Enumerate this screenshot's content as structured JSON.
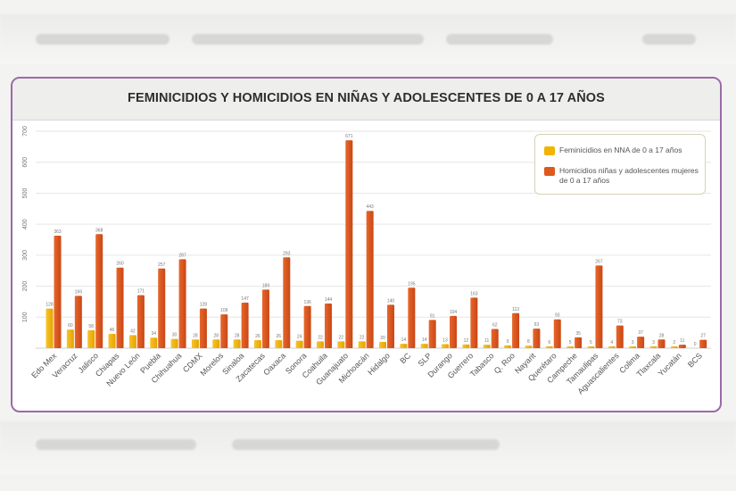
{
  "chart_data": {
    "type": "bar",
    "title": "FEMINICIDIOS Y HOMICIDIOS EN NIÑAS Y ADOLESCENTES DE 0 A 17 AÑOS",
    "ylim": [
      0,
      700
    ],
    "yticks": [
      100,
      200,
      300,
      400,
      500,
      600,
      700
    ],
    "grid": true,
    "legend_position": "top-right",
    "categories": [
      "Edo Mex",
      "Veracruz",
      "Jalisco",
      "Chiapas",
      "Nuevo León",
      "Puebla",
      "Chihuahua",
      "CDMX",
      "Morelos",
      "Sinaloa",
      "Zacatecas",
      "Oaxaca",
      "Sonora",
      "Coahuila",
      "Guanajuato",
      "Michoacán",
      "Hidalgo",
      "BC",
      "SLP",
      "Durango",
      "Guerrero",
      "Tabasco",
      "Q. Roo",
      "Nayarit",
      "Querétaro",
      "Campeche",
      "Tamaulipas",
      "Aguascalientes",
      "Colima",
      "Tlaxcala",
      "Yucatán",
      "BCS"
    ],
    "series": [
      {
        "name": "Feminicidios en NNA de 0 a 17 años",
        "color": "#f2b400",
        "values": [
          128,
          60,
          58,
          46,
          42,
          34,
          30,
          28,
          28,
          28,
          26,
          26,
          24,
          22,
          22,
          22,
          20,
          14,
          14,
          13,
          12,
          11,
          9,
          8,
          6,
          5,
          5,
          4,
          3,
          3,
          2,
          0
        ]
      },
      {
        "name": "Homicidios niñas y adolescentes mujeres de 0 a 17 años",
        "color": "#dc5a1e",
        "values": [
          363,
          169,
          368,
          260,
          171,
          257,
          287,
          128,
          109,
          147,
          189,
          293,
          136,
          144,
          671,
          443,
          140,
          195,
          91,
          104,
          163,
          62,
          113,
          63,
          93,
          35,
          267,
          73,
          37,
          28,
          11,
          27
        ]
      }
    ],
    "bar_labels": {
      "feminicidios": [
        "128",
        "60",
        "58",
        "46",
        "42",
        "34",
        "30",
        "28",
        "28",
        "28",
        "26",
        "26",
        "24",
        "22",
        "22",
        "22",
        "20",
        "14",
        "14",
        "13",
        "12",
        "11",
        "9",
        "8",
        "6",
        "5",
        "5",
        "4",
        "3",
        "3",
        "2",
        "0"
      ],
      "homicidios": [
        "363",
        "169",
        "368",
        "260",
        "171",
        "257",
        "287",
        "128",
        "109",
        "147",
        "189",
        "293",
        "136",
        "144",
        "671",
        "443",
        "140",
        "195",
        "91",
        "104",
        "163",
        "62",
        "113",
        "63",
        "93",
        "35",
        "267",
        "73",
        "37",
        "28",
        "11",
        "27"
      ]
    }
  }
}
